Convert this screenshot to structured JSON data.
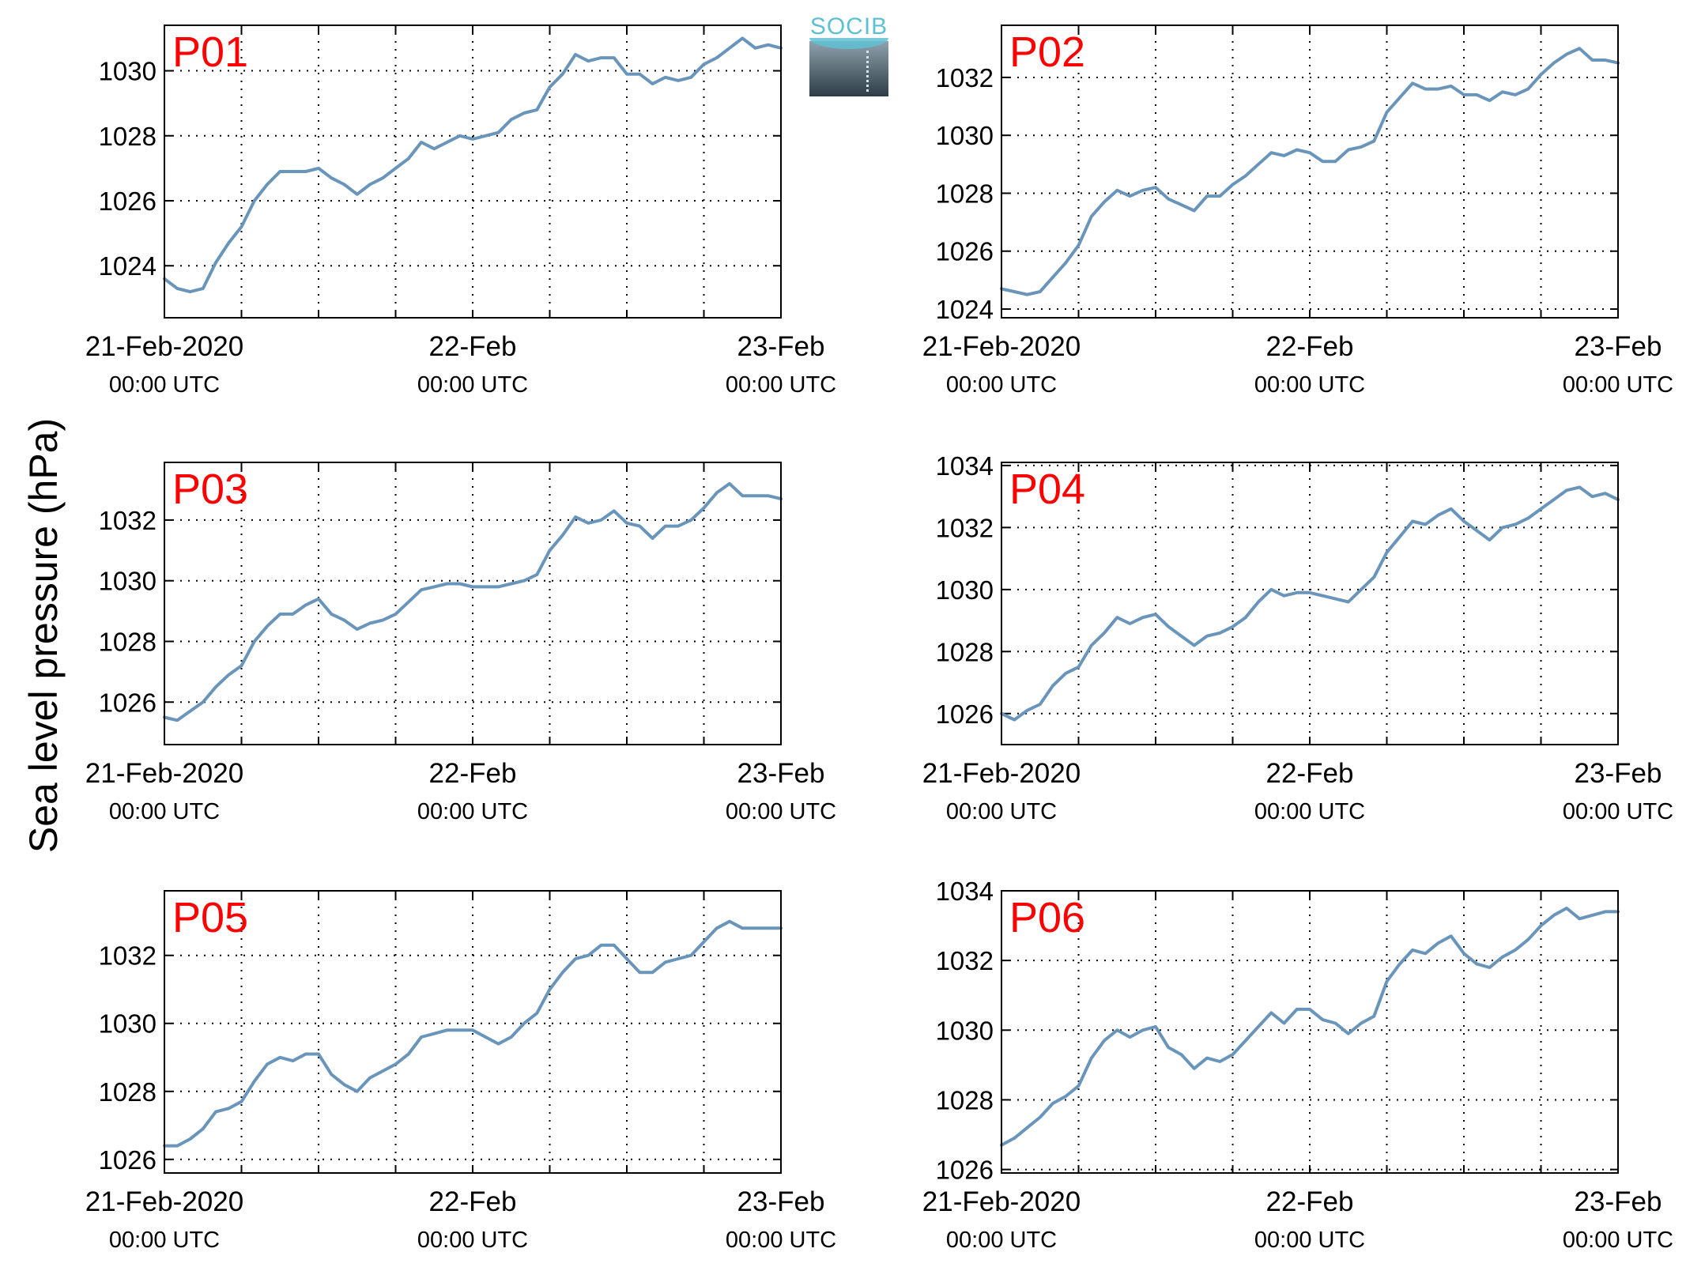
{
  "figure": {
    "ylabel": "Sea level pressure (hPa)",
    "logo_text": "SOCIB"
  },
  "colors": {
    "line": "#6a95ba",
    "panel_label": "#ff0000",
    "grid": "#000000"
  },
  "chart_data": [
    {
      "type": "line",
      "title": "P01",
      "grid": true,
      "xlim": [
        "21-Feb-2020 00:00",
        "23-Feb-2020 00:00"
      ],
      "ylim": [
        1022.4,
        1031.4
      ],
      "yticks": [
        1024,
        1026,
        1028,
        1030
      ],
      "xticks": [
        {
          "label": "21-Feb-2020",
          "sub": "00:00 UTC"
        },
        {
          "label": "22-Feb",
          "sub": "00:00 UTC"
        },
        {
          "label": "23-Feb",
          "sub": "00:00 UTC"
        }
      ],
      "series": [
        {
          "x": [
            "21-Feb 00:00",
            "21-Feb 01:00",
            "21-Feb 02:00",
            "21-Feb 03:00",
            "21-Feb 04:00",
            "21-Feb 05:00",
            "21-Feb 06:00",
            "21-Feb 07:00",
            "21-Feb 08:00",
            "21-Feb 09:00",
            "21-Feb 10:00",
            "21-Feb 11:00",
            "21-Feb 12:00",
            "21-Feb 13:00",
            "21-Feb 14:00",
            "21-Feb 15:00",
            "21-Feb 16:00",
            "21-Feb 17:00",
            "21-Feb 18:00",
            "21-Feb 19:00",
            "21-Feb 20:00",
            "21-Feb 21:00",
            "21-Feb 22:00",
            "21-Feb 23:00",
            "22-Feb 00:00",
            "22-Feb 01:00",
            "22-Feb 02:00",
            "22-Feb 03:00",
            "22-Feb 04:00",
            "22-Feb 05:00",
            "22-Feb 06:00",
            "22-Feb 07:00",
            "22-Feb 08:00",
            "22-Feb 09:00",
            "22-Feb 10:00",
            "22-Feb 11:00",
            "22-Feb 12:00",
            "22-Feb 13:00",
            "22-Feb 14:00",
            "22-Feb 15:00",
            "22-Feb 16:00",
            "22-Feb 17:00",
            "22-Feb 18:00",
            "22-Feb 19:00",
            "22-Feb 20:00",
            "22-Feb 21:00",
            "22-Feb 22:00",
            "22-Feb 23:00",
            "23-Feb 00:00"
          ],
          "y": [
            1023.6,
            1023.3,
            1023.2,
            1023.3,
            1024.1,
            1024.7,
            1025.2,
            1026.0,
            1026.5,
            1026.9,
            1026.9,
            1026.9,
            1027.0,
            1026.7,
            1026.5,
            1026.2,
            1026.5,
            1026.7,
            1027.0,
            1027.3,
            1027.8,
            1027.6,
            1027.8,
            1028.0,
            1027.9,
            1028.0,
            1028.1,
            1028.5,
            1028.7,
            1028.8,
            1029.5,
            1029.9,
            1030.5,
            1030.3,
            1030.4,
            1030.4,
            1029.9,
            1029.9,
            1029.6,
            1029.8,
            1029.7,
            1029.8,
            1030.2,
            1030.4,
            1030.7,
            1031.0,
            1030.7,
            1030.8,
            1030.7
          ]
        }
      ]
    },
    {
      "type": "line",
      "title": "P02",
      "grid": true,
      "xlim": [
        "21-Feb-2020 00:00",
        "23-Feb-2020 00:00"
      ],
      "ylim": [
        1023.7,
        1033.8
      ],
      "yticks": [
        1024,
        1026,
        1028,
        1030,
        1032
      ],
      "xticks": [
        {
          "label": "21-Feb-2020",
          "sub": "00:00 UTC"
        },
        {
          "label": "22-Feb",
          "sub": "00:00 UTC"
        },
        {
          "label": "23-Feb",
          "sub": "00:00 UTC"
        }
      ],
      "series": [
        {
          "x": [
            "21-Feb 00:00",
            "21-Feb 01:00",
            "21-Feb 02:00",
            "21-Feb 03:00",
            "21-Feb 04:00",
            "21-Feb 05:00",
            "21-Feb 06:00",
            "21-Feb 07:00",
            "21-Feb 08:00",
            "21-Feb 09:00",
            "21-Feb 10:00",
            "21-Feb 11:00",
            "21-Feb 12:00",
            "21-Feb 13:00",
            "21-Feb 14:00",
            "21-Feb 15:00",
            "21-Feb 16:00",
            "21-Feb 17:00",
            "21-Feb 18:00",
            "21-Feb 19:00",
            "21-Feb 20:00",
            "21-Feb 21:00",
            "21-Feb 22:00",
            "21-Feb 23:00",
            "22-Feb 00:00",
            "22-Feb 01:00",
            "22-Feb 02:00",
            "22-Feb 03:00",
            "22-Feb 04:00",
            "22-Feb 05:00",
            "22-Feb 06:00",
            "22-Feb 07:00",
            "22-Feb 08:00",
            "22-Feb 09:00",
            "22-Feb 10:00",
            "22-Feb 11:00",
            "22-Feb 12:00",
            "22-Feb 13:00",
            "22-Feb 14:00",
            "22-Feb 15:00",
            "22-Feb 16:00",
            "22-Feb 17:00",
            "22-Feb 18:00",
            "22-Feb 19:00",
            "22-Feb 20:00",
            "22-Feb 21:00",
            "22-Feb 22:00",
            "22-Feb 23:00",
            "23-Feb 00:00"
          ],
          "y": [
            1024.7,
            1024.6,
            1024.5,
            1024.6,
            1025.1,
            1025.6,
            1026.2,
            1027.2,
            1027.7,
            1028.1,
            1027.9,
            1028.1,
            1028.2,
            1027.8,
            1027.6,
            1027.4,
            1027.9,
            1027.9,
            1028.3,
            1028.6,
            1029.0,
            1029.4,
            1029.3,
            1029.5,
            1029.4,
            1029.1,
            1029.1,
            1029.5,
            1029.6,
            1029.8,
            1030.8,
            1031.3,
            1031.8,
            1031.6,
            1031.6,
            1031.7,
            1031.4,
            1031.4,
            1031.2,
            1031.5,
            1031.4,
            1031.6,
            1032.1,
            1032.5,
            1032.8,
            1033.0,
            1032.6,
            1032.6,
            1032.5
          ]
        }
      ]
    },
    {
      "type": "line",
      "title": "P03",
      "grid": true,
      "xlim": [
        "21-Feb-2020 00:00",
        "23-Feb-2020 00:00"
      ],
      "ylim": [
        1024.6,
        1033.9
      ],
      "yticks": [
        1026,
        1028,
        1030,
        1032
      ],
      "xticks": [
        {
          "label": "21-Feb-2020",
          "sub": "00:00 UTC"
        },
        {
          "label": "22-Feb",
          "sub": "00:00 UTC"
        },
        {
          "label": "23-Feb",
          "sub": "00:00 UTC"
        }
      ],
      "series": [
        {
          "x": [
            "21-Feb 00:00",
            "21-Feb 01:00",
            "21-Feb 02:00",
            "21-Feb 03:00",
            "21-Feb 04:00",
            "21-Feb 05:00",
            "21-Feb 06:00",
            "21-Feb 07:00",
            "21-Feb 08:00",
            "21-Feb 09:00",
            "21-Feb 10:00",
            "21-Feb 11:00",
            "21-Feb 12:00",
            "21-Feb 13:00",
            "21-Feb 14:00",
            "21-Feb 15:00",
            "21-Feb 16:00",
            "21-Feb 17:00",
            "21-Feb 18:00",
            "21-Feb 19:00",
            "21-Feb 20:00",
            "21-Feb 21:00",
            "21-Feb 22:00",
            "21-Feb 23:00",
            "22-Feb 00:00",
            "22-Feb 01:00",
            "22-Feb 02:00",
            "22-Feb 03:00",
            "22-Feb 04:00",
            "22-Feb 05:00",
            "22-Feb 06:00",
            "22-Feb 07:00",
            "22-Feb 08:00",
            "22-Feb 09:00",
            "22-Feb 10:00",
            "22-Feb 11:00",
            "22-Feb 12:00",
            "22-Feb 13:00",
            "22-Feb 14:00",
            "22-Feb 15:00",
            "22-Feb 16:00",
            "22-Feb 17:00",
            "22-Feb 18:00",
            "22-Feb 19:00",
            "22-Feb 20:00",
            "22-Feb 21:00",
            "22-Feb 22:00",
            "22-Feb 23:00",
            "23-Feb 00:00"
          ],
          "y": [
            1025.5,
            1025.4,
            1025.7,
            1026.0,
            1026.5,
            1026.9,
            1027.2,
            1028.0,
            1028.5,
            1028.9,
            1028.9,
            1029.2,
            1029.4,
            1028.9,
            1028.7,
            1028.4,
            1028.6,
            1028.7,
            1028.9,
            1029.3,
            1029.7,
            1029.8,
            1029.9,
            1029.9,
            1029.8,
            1029.8,
            1029.8,
            1029.9,
            1030.0,
            1030.2,
            1031.0,
            1031.5,
            1032.1,
            1031.9,
            1032.0,
            1032.3,
            1031.9,
            1031.8,
            1031.4,
            1031.8,
            1031.8,
            1032.0,
            1032.4,
            1032.9,
            1033.2,
            1032.8,
            1032.8,
            1032.8,
            1032.7
          ]
        }
      ]
    },
    {
      "type": "line",
      "title": "P04",
      "grid": true,
      "xlim": [
        "21-Feb-2020 00:00",
        "23-Feb-2020 00:00"
      ],
      "ylim": [
        1025.0,
        1034.1
      ],
      "yticks": [
        1026,
        1028,
        1030,
        1032,
        1034
      ],
      "xticks": [
        {
          "label": "21-Feb-2020",
          "sub": "00:00 UTC"
        },
        {
          "label": "22-Feb",
          "sub": "00:00 UTC"
        },
        {
          "label": "23-Feb",
          "sub": "00:00 UTC"
        }
      ],
      "series": [
        {
          "x": [
            "21-Feb 00:00",
            "21-Feb 01:00",
            "21-Feb 02:00",
            "21-Feb 03:00",
            "21-Feb 04:00",
            "21-Feb 05:00",
            "21-Feb 06:00",
            "21-Feb 07:00",
            "21-Feb 08:00",
            "21-Feb 09:00",
            "21-Feb 10:00",
            "21-Feb 11:00",
            "21-Feb 12:00",
            "21-Feb 13:00",
            "21-Feb 14:00",
            "21-Feb 15:00",
            "21-Feb 16:00",
            "21-Feb 17:00",
            "21-Feb 18:00",
            "21-Feb 19:00",
            "21-Feb 20:00",
            "21-Feb 21:00",
            "21-Feb 22:00",
            "21-Feb 23:00",
            "22-Feb 00:00",
            "22-Feb 01:00",
            "22-Feb 02:00",
            "22-Feb 03:00",
            "22-Feb 04:00",
            "22-Feb 05:00",
            "22-Feb 06:00",
            "22-Feb 07:00",
            "22-Feb 08:00",
            "22-Feb 09:00",
            "22-Feb 10:00",
            "22-Feb 11:00",
            "22-Feb 12:00",
            "22-Feb 13:00",
            "22-Feb 14:00",
            "22-Feb 15:00",
            "22-Feb 16:00",
            "22-Feb 17:00",
            "22-Feb 18:00",
            "22-Feb 19:00",
            "22-Feb 20:00",
            "22-Feb 21:00",
            "22-Feb 22:00",
            "22-Feb 23:00",
            "23-Feb 00:00"
          ],
          "y": [
            1026.0,
            1025.8,
            1026.1,
            1026.3,
            1026.9,
            1027.3,
            1027.5,
            1028.2,
            1028.6,
            1029.1,
            1028.9,
            1029.1,
            1029.2,
            1028.8,
            1028.5,
            1028.2,
            1028.5,
            1028.6,
            1028.8,
            1029.1,
            1029.6,
            1030.0,
            1029.8,
            1029.9,
            1029.9,
            1029.8,
            1029.7,
            1029.6,
            1030.0,
            1030.4,
            1031.2,
            1031.7,
            1032.2,
            1032.1,
            1032.4,
            1032.6,
            1032.2,
            1031.9,
            1031.6,
            1032.0,
            1032.1,
            1032.3,
            1032.6,
            1032.9,
            1033.2,
            1033.3,
            1033.0,
            1033.1,
            1032.9
          ]
        }
      ]
    },
    {
      "type": "line",
      "title": "P05",
      "grid": true,
      "xlim": [
        "21-Feb-2020 00:00",
        "23-Feb-2020 00:00"
      ],
      "ylim": [
        1025.6,
        1033.9
      ],
      "yticks": [
        1026,
        1028,
        1030,
        1032
      ],
      "xticks": [
        {
          "label": "21-Feb-2020",
          "sub": "00:00 UTC"
        },
        {
          "label": "22-Feb",
          "sub": "00:00 UTC"
        },
        {
          "label": "23-Feb",
          "sub": "00:00 UTC"
        }
      ],
      "series": [
        {
          "x": [
            "21-Feb 00:00",
            "21-Feb 01:00",
            "21-Feb 02:00",
            "21-Feb 03:00",
            "21-Feb 04:00",
            "21-Feb 05:00",
            "21-Feb 06:00",
            "21-Feb 07:00",
            "21-Feb 08:00",
            "21-Feb 09:00",
            "21-Feb 10:00",
            "21-Feb 11:00",
            "21-Feb 12:00",
            "21-Feb 13:00",
            "21-Feb 14:00",
            "21-Feb 15:00",
            "21-Feb 16:00",
            "21-Feb 17:00",
            "21-Feb 18:00",
            "21-Feb 19:00",
            "21-Feb 20:00",
            "21-Feb 21:00",
            "21-Feb 22:00",
            "21-Feb 23:00",
            "22-Feb 00:00",
            "22-Feb 01:00",
            "22-Feb 02:00",
            "22-Feb 03:00",
            "22-Feb 04:00",
            "22-Feb 05:00",
            "22-Feb 06:00",
            "22-Feb 07:00",
            "22-Feb 08:00",
            "22-Feb 09:00",
            "22-Feb 10:00",
            "22-Feb 11:00",
            "22-Feb 12:00",
            "22-Feb 13:00",
            "22-Feb 14:00",
            "22-Feb 15:00",
            "22-Feb 16:00",
            "22-Feb 17:00",
            "22-Feb 18:00",
            "22-Feb 19:00",
            "22-Feb 20:00",
            "22-Feb 21:00",
            "22-Feb 22:00",
            "22-Feb 23:00",
            "23-Feb 00:00"
          ],
          "y": [
            1026.4,
            1026.4,
            1026.6,
            1026.9,
            1027.4,
            1027.5,
            1027.7,
            1028.3,
            1028.8,
            1029.0,
            1028.9,
            1029.1,
            1029.1,
            1028.5,
            1028.2,
            1028.0,
            1028.4,
            1028.6,
            1028.8,
            1029.1,
            1029.6,
            1029.7,
            1029.8,
            1029.8,
            1029.8,
            1029.6,
            1029.4,
            1029.6,
            1030.0,
            1030.3,
            1031.0,
            1031.5,
            1031.9,
            1032.0,
            1032.3,
            1032.3,
            1031.9,
            1031.5,
            1031.5,
            1031.8,
            1031.9,
            1032.0,
            1032.4,
            1032.8,
            1033.0,
            1032.8,
            1032.8,
            1032.8,
            1032.8
          ]
        }
      ]
    },
    {
      "type": "line",
      "title": "P06",
      "grid": true,
      "xlim": [
        "21-Feb-2020 00:00",
        "23-Feb-2020 00:00"
      ],
      "ylim": [
        1025.9,
        1034.0
      ],
      "yticks": [
        1026,
        1028,
        1030,
        1032,
        1034
      ],
      "xticks": [
        {
          "label": "21-Feb-2020",
          "sub": "00:00 UTC"
        },
        {
          "label": "22-Feb",
          "sub": "00:00 UTC"
        },
        {
          "label": "23-Feb",
          "sub": "00:00 UTC"
        }
      ],
      "series": [
        {
          "x": [
            "21-Feb 00:00",
            "21-Feb 01:00",
            "21-Feb 02:00",
            "21-Feb 03:00",
            "21-Feb 04:00",
            "21-Feb 05:00",
            "21-Feb 06:00",
            "21-Feb 07:00",
            "21-Feb 08:00",
            "21-Feb 09:00",
            "21-Feb 10:00",
            "21-Feb 11:00",
            "21-Feb 12:00",
            "21-Feb 13:00",
            "21-Feb 14:00",
            "21-Feb 15:00",
            "21-Feb 16:00",
            "21-Feb 17:00",
            "21-Feb 18:00",
            "21-Feb 19:00",
            "21-Feb 20:00",
            "21-Feb 21:00",
            "21-Feb 22:00",
            "21-Feb 23:00",
            "22-Feb 00:00",
            "22-Feb 01:00",
            "22-Feb 02:00",
            "22-Feb 03:00",
            "22-Feb 04:00",
            "22-Feb 05:00",
            "22-Feb 06:00",
            "22-Feb 07:00",
            "22-Feb 08:00",
            "22-Feb 09:00",
            "22-Feb 10:00",
            "22-Feb 11:00",
            "22-Feb 12:00",
            "22-Feb 13:00",
            "22-Feb 14:00",
            "22-Feb 15:00",
            "22-Feb 16:00",
            "22-Feb 17:00",
            "22-Feb 18:00",
            "22-Feb 19:00",
            "22-Feb 20:00",
            "22-Feb 21:00",
            "22-Feb 22:00",
            "22-Feb 23:00",
            "23-Feb 00:00"
          ],
          "y": [
            1026.7,
            1026.9,
            1027.2,
            1027.5,
            1027.9,
            1028.1,
            1028.4,
            1029.2,
            1029.7,
            1030.0,
            1029.8,
            1030.0,
            1030.1,
            1029.5,
            1029.3,
            1028.9,
            1029.2,
            1029.1,
            1029.3,
            1029.7,
            1030.1,
            1030.5,
            1030.2,
            1030.6,
            1030.6,
            1030.3,
            1030.2,
            1029.9,
            1030.2,
            1030.4,
            1031.4,
            1031.9,
            1032.3,
            1032.2,
            1032.5,
            1032.7,
            1032.2,
            1031.9,
            1031.8,
            1032.1,
            1032.3,
            1032.6,
            1033.0,
            1033.3,
            1033.5,
            1033.2,
            1033.3,
            1033.4,
            1033.4
          ]
        }
      ]
    }
  ]
}
